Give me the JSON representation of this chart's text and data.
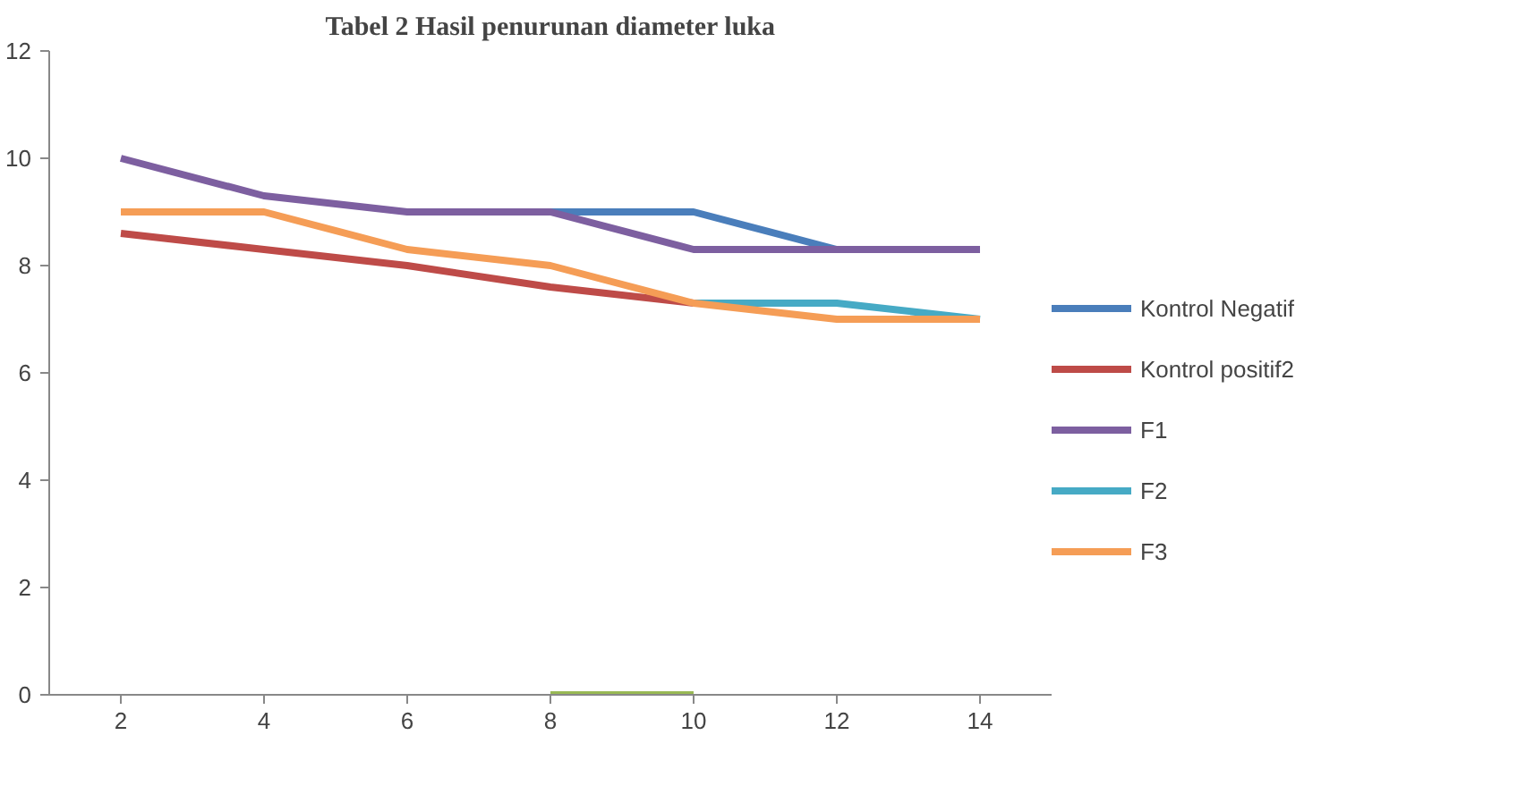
{
  "chart_data": {
    "type": "line",
    "title": "Tabel 2 Hasil penurunan diameter luka",
    "categories": [
      "2",
      "4",
      "6",
      "8",
      "10",
      "12",
      "14"
    ],
    "series": [
      {
        "name": "Kontrol Negatif",
        "color": "#4a7ebb",
        "values": [
          null,
          null,
          null,
          9,
          9,
          8.3,
          null
        ]
      },
      {
        "name": "Kontrol positif2",
        "color": "#be4b48",
        "values": [
          8.6,
          8.3,
          8,
          7.6,
          7.3,
          null,
          null
        ]
      },
      {
        "name": "F1",
        "color": "#7d5fa0",
        "values": [
          10,
          9.3,
          9,
          9,
          8.3,
          8.3,
          8.3
        ]
      },
      {
        "name": "F2",
        "color": "#46aac5",
        "values": [
          null,
          null,
          null,
          null,
          7.3,
          7.3,
          7
        ]
      },
      {
        "name": "F3",
        "color": "#f59d56",
        "values": [
          9,
          9,
          8.3,
          8,
          7.3,
          7,
          7
        ]
      },
      {
        "color": "#98b954",
        "values": [
          null,
          null,
          null,
          0,
          0,
          null,
          null
        ]
      }
    ],
    "ylim": [
      0,
      12
    ],
    "yticks": [
      0,
      2,
      4,
      6,
      8,
      10,
      12
    ],
    "grid": false,
    "legend": "right",
    "marker": "none",
    "line_style": "solid"
  }
}
